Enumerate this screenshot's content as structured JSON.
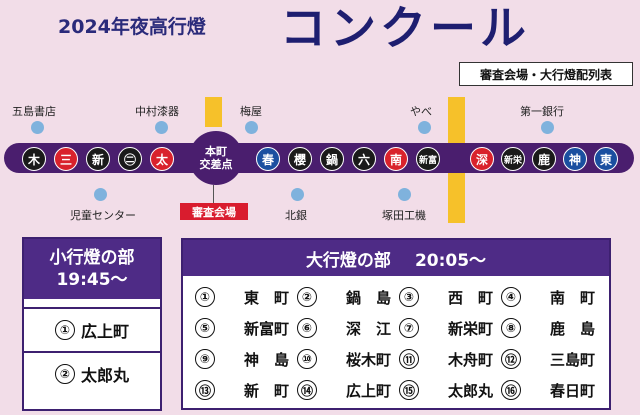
{
  "header": {
    "year_label": "2024年夜高行燈",
    "title": "コンクール",
    "legend_tag": "審査会場・大行燈配列表"
  },
  "map": {
    "center_label_1": "本町",
    "center_label_2": "交差点",
    "judge_badge": "審査会場",
    "top_landmarks": [
      "五島書店",
      "中村漆器",
      "梅屋",
      "やべ",
      "第一銀行"
    ],
    "bottom_landmarks": [
      "児童センター",
      "北銀",
      "塚田工機"
    ],
    "lanterns_left": [
      {
        "glyph": "木",
        "color": "#1a1a1a"
      },
      {
        "glyph": "三",
        "color": "#d9222c"
      },
      {
        "glyph": "新",
        "color": "#1a1a1a"
      },
      {
        "glyph": "㊁",
        "color": "#1a1a1a"
      },
      {
        "glyph": "太",
        "color": "#d9222c"
      }
    ],
    "lanterns_mid": [
      {
        "glyph": "春",
        "color": "#1a4fa0"
      },
      {
        "glyph": "櫻",
        "color": "#1a1a1a"
      },
      {
        "glyph": "鍋",
        "color": "#1a1a1a"
      },
      {
        "glyph": "六",
        "color": "#1a1a1a"
      },
      {
        "glyph": "南",
        "color": "#d9222c"
      },
      {
        "glyph": "新富",
        "color": "#1a1a1a"
      }
    ],
    "lanterns_right": [
      {
        "glyph": "深",
        "color": "#d9222c"
      },
      {
        "glyph": "新栄",
        "color": "#1a1a1a"
      },
      {
        "glyph": "鹿",
        "color": "#1a1a1a"
      },
      {
        "glyph": "神",
        "color": "#1a4fa0"
      },
      {
        "glyph": "東",
        "color": "#1a4fa0"
      }
    ]
  },
  "small_section": {
    "title": "小行燈の部",
    "time": "19:45～",
    "entries": [
      {
        "num": "①",
        "name": "広上町"
      },
      {
        "num": "②",
        "name": "太郎丸"
      }
    ]
  },
  "big_section": {
    "title": "大行燈の部",
    "time": "20:05～",
    "entries": [
      {
        "num": "①",
        "name": "東　町"
      },
      {
        "num": "②",
        "name": "鍋　島"
      },
      {
        "num": "③",
        "name": "西　町"
      },
      {
        "num": "④",
        "name": "南　町"
      },
      {
        "num": "⑤",
        "name": "新富町"
      },
      {
        "num": "⑥",
        "name": "深　江"
      },
      {
        "num": "⑦",
        "name": "新栄町"
      },
      {
        "num": "⑧",
        "name": "鹿　島"
      },
      {
        "num": "⑨",
        "name": "神　島"
      },
      {
        "num": "⑩",
        "name": "桜木町"
      },
      {
        "num": "⑪",
        "name": "木舟町"
      },
      {
        "num": "⑫",
        "name": "三島町"
      },
      {
        "num": "⑬",
        "name": "新　町"
      },
      {
        "num": "⑭",
        "name": "広上町"
      },
      {
        "num": "⑮",
        "name": "太郎丸"
      },
      {
        "num": "⑯",
        "name": "春日町"
      }
    ]
  }
}
